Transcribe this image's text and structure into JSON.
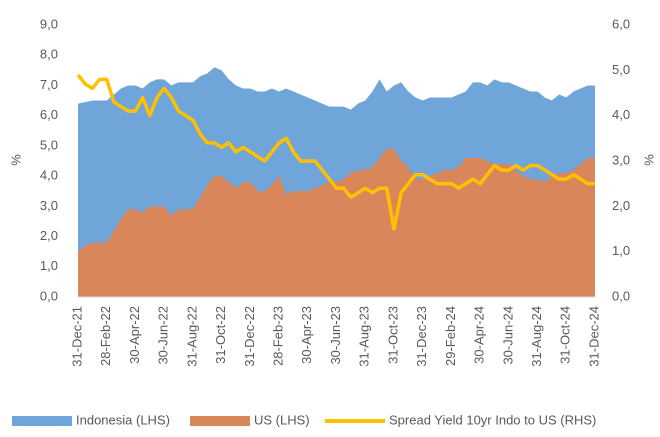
{
  "chart_data": {
    "type": "combo",
    "y_label": "%",
    "y2_label": "%",
    "categories": [
      "31-Dec-21",
      null,
      null,
      null,
      "28-Feb-22",
      null,
      null,
      null,
      "30-Apr-22",
      null,
      null,
      null,
      "30-Jun-22",
      null,
      null,
      null,
      "31-Aug-22",
      null,
      null,
      null,
      "31-Oct-22",
      null,
      null,
      null,
      "31-Dec-22",
      null,
      null,
      null,
      "28-Feb-23",
      null,
      null,
      null,
      "30-Apr-23",
      null,
      null,
      null,
      "30-Jun-23",
      null,
      null,
      null,
      "31-Aug-23",
      null,
      null,
      null,
      "31-Oct-23",
      null,
      null,
      null,
      "31-Dec-23",
      null,
      null,
      null,
      "29-Feb-24",
      null,
      null,
      null,
      "30-Apr-24",
      null,
      null,
      null,
      "30-Jun-24",
      null,
      null,
      null,
      "31-Aug-24",
      null,
      null,
      null,
      "31-Oct-24",
      null,
      null,
      null,
      "31-Dec-24"
    ],
    "ylim": [
      0,
      9
    ],
    "yticks": [
      {
        "value": 0,
        "label": "0,0"
      },
      {
        "value": 1,
        "label": "1,0"
      },
      {
        "value": 2,
        "label": "2,0"
      },
      {
        "value": 3,
        "label": "3,0"
      },
      {
        "value": 4,
        "label": "4,0"
      },
      {
        "value": 5,
        "label": "5,0"
      },
      {
        "value": 6,
        "label": "6,0"
      },
      {
        "value": 7,
        "label": "7,0"
      },
      {
        "value": 8,
        "label": "8,0"
      },
      {
        "value": 9,
        "label": "9,0"
      }
    ],
    "y2lim": [
      0,
      6
    ],
    "y2ticks": [
      {
        "value": 0,
        "label": "0,0"
      },
      {
        "value": 1,
        "label": "1,0"
      },
      {
        "value": 2,
        "label": "2,0"
      },
      {
        "value": 3,
        "label": "3,0"
      },
      {
        "value": 4,
        "label": "4,0"
      },
      {
        "value": 5,
        "label": "5,0"
      },
      {
        "value": 6,
        "label": "6,0"
      }
    ],
    "series": [
      {
        "name": "Indonesia (LHS)",
        "type": "area",
        "color": "#6fa5d9",
        "values": [
          6.4,
          6.45,
          6.5,
          6.5,
          6.5,
          6.7,
          6.9,
          7.0,
          7.0,
          6.9,
          7.1,
          7.2,
          7.2,
          7.0,
          7.1,
          7.1,
          7.1,
          7.3,
          7.4,
          7.6,
          7.5,
          7.2,
          7.0,
          6.9,
          6.9,
          6.8,
          6.8,
          6.9,
          6.8,
          6.9,
          6.8,
          6.7,
          6.6,
          6.5,
          6.4,
          6.3,
          6.3,
          6.3,
          6.2,
          6.4,
          6.5,
          6.8,
          7.2,
          6.8,
          7.0,
          7.1,
          6.8,
          6.6,
          6.5,
          6.6,
          6.6,
          6.6,
          6.6,
          6.7,
          6.8,
          7.1,
          7.1,
          7.0,
          7.2,
          7.1,
          7.1,
          7.0,
          6.9,
          6.8,
          6.8,
          6.6,
          6.5,
          6.7,
          6.6,
          6.8,
          6.9,
          7.0,
          7.0
        ]
      },
      {
        "name": "US (LHS)",
        "type": "area",
        "color": "#d9875a",
        "values": [
          1.5,
          1.7,
          1.8,
          1.8,
          1.8,
          2.2,
          2.6,
          2.9,
          2.9,
          2.8,
          3.0,
          3.0,
          3.0,
          2.7,
          2.9,
          2.9,
          2.9,
          3.3,
          3.7,
          4.0,
          4.0,
          3.8,
          3.6,
          3.8,
          3.8,
          3.5,
          3.5,
          3.7,
          4.0,
          3.4,
          3.5,
          3.5,
          3.5,
          3.6,
          3.7,
          3.8,
          3.8,
          3.9,
          4.1,
          4.2,
          4.2,
          4.3,
          4.6,
          4.9,
          4.9,
          4.5,
          4.3,
          3.9,
          3.9,
          4.0,
          4.1,
          4.2,
          4.2,
          4.3,
          4.6,
          4.6,
          4.6,
          4.5,
          4.4,
          4.4,
          4.4,
          4.2,
          4.0,
          3.9,
          3.9,
          3.8,
          4.0,
          4.1,
          4.1,
          4.2,
          4.4,
          4.6,
          4.6
        ]
      },
      {
        "name": "Spread Yield 10yr Indo to US (RHS)",
        "type": "line",
        "axis": "y2",
        "color": "#ffc000",
        "values": [
          4.9,
          4.7,
          4.6,
          4.8,
          4.8,
          4.3,
          4.2,
          4.1,
          4.1,
          4.4,
          4.0,
          4.4,
          4.6,
          4.4,
          4.1,
          4.0,
          3.9,
          3.6,
          3.4,
          3.4,
          3.3,
          3.4,
          3.2,
          3.3,
          3.2,
          3.1,
          3.0,
          3.2,
          3.4,
          3.5,
          3.2,
          3.0,
          3.0,
          3.0,
          2.8,
          2.6,
          2.4,
          2.4,
          2.2,
          2.3,
          2.4,
          2.3,
          2.4,
          2.4,
          1.5,
          2.3,
          2.5,
          2.7,
          2.7,
          2.6,
          2.5,
          2.5,
          2.5,
          2.4,
          2.5,
          2.6,
          2.5,
          2.7,
          2.9,
          2.8,
          2.8,
          2.9,
          2.8,
          2.9,
          2.9,
          2.8,
          2.7,
          2.6,
          2.6,
          2.7,
          2.6,
          2.5,
          2.5
        ]
      }
    ]
  }
}
